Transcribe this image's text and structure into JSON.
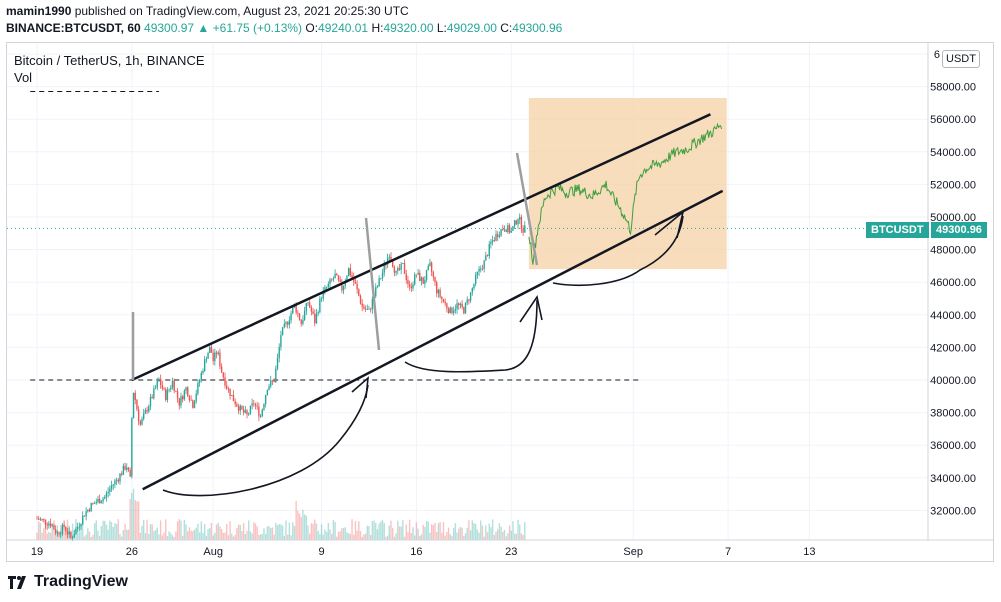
{
  "header": {
    "line1": {
      "author": "mamin1990",
      "rest": " published on TradingView.com, August 23, 2021 20:25:30 UTC"
    },
    "line2": {
      "symbol": "BINANCE:BTCUSDT, 60",
      "last": " 49300.97 ",
      "arrow": "▲",
      "change": " +61.75 (+0.13%)",
      "o_label": " O:",
      "o_val": "49240.01",
      "h_label": " H:",
      "h_val": "49320.00",
      "l_label": " L:",
      "l_val": "49029.00",
      "c_label": " C:",
      "c_val": "49300.96"
    }
  },
  "legend": {
    "title": "Bitcoin / TetherUS, 1h, BINANCE",
    "vol": "Vol"
  },
  "currency": "USDT",
  "price_tag": {
    "symbol": "BTCUSDT",
    "price": "49300.96"
  },
  "brand": "TradingView",
  "colors": {
    "up": "#26a69a",
    "down": "#ef5350",
    "box": "#f6d2a6",
    "channel": "#131722",
    "grid": "#f0f3fa"
  },
  "chart_data": {
    "type": "candlestick",
    "ylim": [
      30000,
      60000
    ],
    "y_ticks": [
      "32000.00",
      "34000.00",
      "36000.00",
      "38000.00",
      "40000.00",
      "42000.00",
      "44000.00",
      "46000.00",
      "48000.00",
      "50000.00",
      "52000.00",
      "54000.00",
      "56000.00",
      "58000.00",
      "6"
    ],
    "x_ticks": [
      "19",
      "26",
      "Aug",
      "9",
      "16",
      "23",
      "Sep",
      "7",
      "13"
    ],
    "x_tick_days": [
      0,
      7,
      13,
      21,
      28,
      35,
      44,
      51,
      57
    ],
    "last_price": 49300.96,
    "historical_closes": [
      [
        0,
        31500
      ],
      [
        1,
        31200
      ],
      [
        1.5,
        30600
      ],
      [
        2,
        31000
      ],
      [
        2.5,
        30300
      ],
      [
        3,
        31000
      ],
      [
        3.5,
        31800
      ],
      [
        4,
        32300
      ],
      [
        4.5,
        32600
      ],
      [
        5,
        32800
      ],
      [
        5.5,
        33500
      ],
      [
        6,
        34000
      ],
      [
        6.6,
        34800
      ],
      [
        6.9,
        33800
      ],
      [
        7.05,
        39600
      ],
      [
        7.3,
        38600
      ],
      [
        7.6,
        37200
      ],
      [
        8,
        38000
      ],
      [
        8.5,
        39000
      ],
      [
        9,
        40000
      ],
      [
        9.5,
        39000
      ],
      [
        10,
        39900
      ],
      [
        10.5,
        38600
      ],
      [
        11,
        39500
      ],
      [
        11.5,
        38500
      ],
      [
        12,
        40000
      ],
      [
        12.5,
        41500
      ],
      [
        12.8,
        42000
      ],
      [
        13,
        41200
      ],
      [
        13.3,
        41800
      ],
      [
        13.6,
        40600
      ],
      [
        14,
        39600
      ],
      [
        14.5,
        38800
      ],
      [
        15,
        38200
      ],
      [
        15.5,
        37800
      ],
      [
        16,
        38600
      ],
      [
        16.5,
        37800
      ],
      [
        17,
        39600
      ],
      [
        17.5,
        40000
      ],
      [
        17.8,
        41500
      ],
      [
        18,
        42800
      ],
      [
        18.5,
        43600
      ],
      [
        19,
        44600
      ],
      [
        19.5,
        43500
      ],
      [
        20,
        44800
      ],
      [
        20.5,
        43600
      ],
      [
        21,
        45200
      ],
      [
        21.5,
        45800
      ],
      [
        22,
        46400
      ],
      [
        22.5,
        45600
      ],
      [
        23,
        46800
      ],
      [
        23.5,
        45800
      ],
      [
        24,
        44500
      ],
      [
        24.5,
        44200
      ],
      [
        25,
        45500
      ],
      [
        25.5,
        46600
      ],
      [
        26,
        47800
      ],
      [
        26.5,
        46500
      ],
      [
        27,
        47000
      ],
      [
        27.5,
        45600
      ],
      [
        28,
        46500
      ],
      [
        28.5,
        46000
      ],
      [
        29,
        47000
      ],
      [
        29.5,
        45500
      ],
      [
        30,
        44800
      ],
      [
        30.5,
        44200
      ],
      [
        31,
        44600
      ],
      [
        31.5,
        44300
      ],
      [
        32,
        45300
      ],
      [
        32.5,
        46500
      ],
      [
        33,
        47200
      ],
      [
        33.5,
        48400
      ],
      [
        34,
        49000
      ],
      [
        34.5,
        49400
      ],
      [
        35,
        49100
      ],
      [
        35.5,
        50000
      ],
      [
        35.9,
        49200
      ],
      [
        36.1,
        49300
      ]
    ],
    "projection": [
      [
        36.3,
        49000
      ],
      [
        36.6,
        47400
      ],
      [
        37,
        49500
      ],
      [
        37.5,
        51200
      ],
      [
        38,
        51600
      ],
      [
        38.5,
        51800
      ],
      [
        39,
        51500
      ],
      [
        40,
        51700
      ],
      [
        41,
        51300
      ],
      [
        42,
        52000
      ],
      [
        42.5,
        51200
      ],
      [
        43,
        50600
      ],
      [
        43.5,
        49800
      ],
      [
        43.8,
        49200
      ],
      [
        44.2,
        51600
      ],
      [
        44.5,
        52600
      ],
      [
        45,
        53000
      ],
      [
        46,
        53300
      ],
      [
        47,
        53900
      ],
      [
        48,
        54200
      ],
      [
        49,
        54800
      ],
      [
        50,
        55300
      ],
      [
        50.6,
        55800
      ]
    ],
    "channel_upper": [
      [
        7,
        40000
      ],
      [
        49.7,
        56300
      ]
    ],
    "channel_lower": [
      [
        7.8,
        33300
      ],
      [
        50.6,
        51600
      ]
    ],
    "dashed_levels": [
      {
        "price": 40000,
        "from_day": -0.5,
        "to_day": 44.6
      },
      {
        "price": 57700,
        "from_day": -0.5,
        "to_day": 9
      }
    ],
    "target_box": {
      "day_from": 36.3,
      "day_to": 50.9,
      "price_from": 46800,
      "price_to": 57300
    }
  }
}
